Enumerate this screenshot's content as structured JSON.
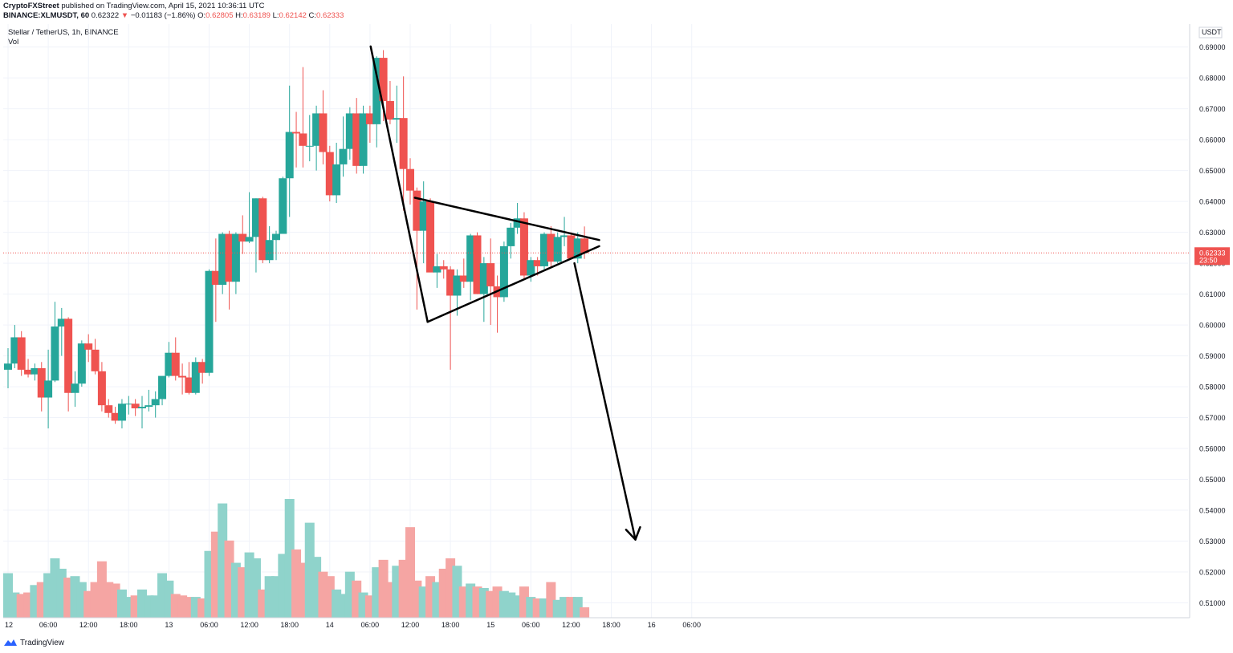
{
  "header": {
    "author": "CryptoFXStreet",
    "published": "published on TradingView.com, April 15, 2021 10:36:11 UTC",
    "symbol": "BINANCE:XLMUSDT, 60",
    "price": "0.62322",
    "change_arrow": "▼",
    "change": "−0.01183 (−1.86%)",
    "o_label": "O:",
    "o": "0.62805",
    "h_label": "H:",
    "h": "0.63189",
    "l_label": "L:",
    "l": "0.62142",
    "c_label": "C:",
    "c": "0.62333"
  },
  "legend": {
    "title": "Stellar / TetherUS, 1h, BINANCE",
    "vol": "Vol"
  },
  "footer": {
    "brand": "TradingView"
  },
  "colors": {
    "up": "#26a69a",
    "down": "#ef5350",
    "vol_up": "#8fd3cb",
    "vol_down": "#f5a5a3",
    "grid": "#f0f3fa"
  },
  "chart_data": {
    "type": "candlestick",
    "currency": "USDT",
    "last_price": "0.62333",
    "countdown": "23:50",
    "ylim": [
      0.5065,
      0.6925
    ],
    "y_ticks": [
      "0.51000",
      "0.52000",
      "0.53000",
      "0.54000",
      "0.55000",
      "0.56000",
      "0.57000",
      "0.58000",
      "0.59000",
      "0.60000",
      "0.61000",
      "0.62000",
      "0.63000",
      "0.64000",
      "0.65000",
      "0.66000",
      "0.67000",
      "0.68000",
      "0.69000"
    ],
    "x_ticks": [
      {
        "label": "12",
        "i": 0
      },
      {
        "label": "06:00",
        "i": 6
      },
      {
        "label": "12:00",
        "i": 12
      },
      {
        "label": "18:00",
        "i": 18
      },
      {
        "label": "13",
        "i": 24
      },
      {
        "label": "06:00",
        "i": 30
      },
      {
        "label": "12:00",
        "i": 36
      },
      {
        "label": "18:00",
        "i": 42
      },
      {
        "label": "14",
        "i": 48
      },
      {
        "label": "06:00",
        "i": 54
      },
      {
        "label": "12:00",
        "i": 60
      },
      {
        "label": "18:00",
        "i": 66
      },
      {
        "label": "15",
        "i": 72
      },
      {
        "label": "06:00",
        "i": 78
      },
      {
        "label": "12:00",
        "i": 84
      },
      {
        "label": "18:00",
        "i": 90
      },
      {
        "label": "16",
        "i": 96
      },
      {
        "label": "06:00",
        "i": 102
      }
    ],
    "vol_scale_max": 100,
    "candles": [
      {
        "o": 0.5855,
        "h": 0.5925,
        "l": 0.5795,
        "c": 0.5875,
        "v": 30
      },
      {
        "o": 0.5875,
        "h": 0.6,
        "l": 0.586,
        "c": 0.596,
        "v": 17
      },
      {
        "o": 0.596,
        "h": 0.598,
        "l": 0.5835,
        "c": 0.5855,
        "v": 16
      },
      {
        "o": 0.5855,
        "h": 0.589,
        "l": 0.583,
        "c": 0.584,
        "v": 17
      },
      {
        "o": 0.584,
        "h": 0.5875,
        "l": 0.582,
        "c": 0.586,
        "v": 22
      },
      {
        "o": 0.586,
        "h": 0.588,
        "l": 0.572,
        "c": 0.5765,
        "v": 24
      },
      {
        "o": 0.5765,
        "h": 0.592,
        "l": 0.5665,
        "c": 0.582,
        "v": 30
      },
      {
        "o": 0.582,
        "h": 0.6075,
        "l": 0.5815,
        "c": 0.5995,
        "v": 40
      },
      {
        "o": 0.5995,
        "h": 0.6055,
        "l": 0.59,
        "c": 0.602,
        "v": 33
      },
      {
        "o": 0.602,
        "h": 0.6025,
        "l": 0.572,
        "c": 0.578,
        "v": 27
      },
      {
        "o": 0.578,
        "h": 0.585,
        "l": 0.5735,
        "c": 0.581,
        "v": 28
      },
      {
        "o": 0.581,
        "h": 0.595,
        "l": 0.58,
        "c": 0.594,
        "v": 24
      },
      {
        "o": 0.594,
        "h": 0.597,
        "l": 0.588,
        "c": 0.592,
        "v": 18
      },
      {
        "o": 0.592,
        "h": 0.5955,
        "l": 0.584,
        "c": 0.585,
        "v": 24
      },
      {
        "o": 0.585,
        "h": 0.588,
        "l": 0.572,
        "c": 0.574,
        "v": 38
      },
      {
        "o": 0.574,
        "h": 0.576,
        "l": 0.57,
        "c": 0.5715,
        "v": 24
      },
      {
        "o": 0.5715,
        "h": 0.5735,
        "l": 0.568,
        "c": 0.569,
        "v": 23
      },
      {
        "o": 0.569,
        "h": 0.576,
        "l": 0.5665,
        "c": 0.5745,
        "v": 19
      },
      {
        "o": 0.5745,
        "h": 0.577,
        "l": 0.571,
        "c": 0.5745,
        "v": 14
      },
      {
        "o": 0.5745,
        "h": 0.576,
        "l": 0.5705,
        "c": 0.573,
        "v": 15
      },
      {
        "o": 0.573,
        "h": 0.577,
        "l": 0.5665,
        "c": 0.5735,
        "v": 19
      },
      {
        "o": 0.5735,
        "h": 0.579,
        "l": 0.572,
        "c": 0.574,
        "v": 15
      },
      {
        "o": 0.574,
        "h": 0.5785,
        "l": 0.57,
        "c": 0.576,
        "v": 15
      },
      {
        "o": 0.576,
        "h": 0.5825,
        "l": 0.574,
        "c": 0.5835,
        "v": 30
      },
      {
        "o": 0.5835,
        "h": 0.5945,
        "l": 0.583,
        "c": 0.591,
        "v": 25
      },
      {
        "o": 0.591,
        "h": 0.596,
        "l": 0.582,
        "c": 0.5835,
        "v": 16
      },
      {
        "o": 0.5835,
        "h": 0.5875,
        "l": 0.5775,
        "c": 0.583,
        "v": 15
      },
      {
        "o": 0.583,
        "h": 0.588,
        "l": 0.5775,
        "c": 0.578,
        "v": 14
      },
      {
        "o": 0.578,
        "h": 0.5895,
        "l": 0.5775,
        "c": 0.588,
        "v": 14
      },
      {
        "o": 0.588,
        "h": 0.589,
        "l": 0.581,
        "c": 0.5845,
        "v": 13
      },
      {
        "o": 0.5845,
        "h": 0.618,
        "l": 0.5835,
        "c": 0.6175,
        "v": 45
      },
      {
        "o": 0.6175,
        "h": 0.628,
        "l": 0.601,
        "c": 0.613,
        "v": 58
      },
      {
        "o": 0.613,
        "h": 0.63,
        "l": 0.61,
        "c": 0.6295,
        "v": 77
      },
      {
        "o": 0.6295,
        "h": 0.6305,
        "l": 0.605,
        "c": 0.614,
        "v": 52
      },
      {
        "o": 0.614,
        "h": 0.63,
        "l": 0.61,
        "c": 0.6295,
        "v": 37
      },
      {
        "o": 0.6295,
        "h": 0.6355,
        "l": 0.623,
        "c": 0.627,
        "v": 34
      },
      {
        "o": 0.627,
        "h": 0.643,
        "l": 0.6265,
        "c": 0.6285,
        "v": 44
      },
      {
        "o": 0.6285,
        "h": 0.641,
        "l": 0.617,
        "c": 0.641,
        "v": 40
      },
      {
        "o": 0.641,
        "h": 0.6415,
        "l": 0.62,
        "c": 0.621,
        "v": 19
      },
      {
        "o": 0.621,
        "h": 0.632,
        "l": 0.62,
        "c": 0.6275,
        "v": 28
      },
      {
        "o": 0.6275,
        "h": 0.6305,
        "l": 0.621,
        "c": 0.6295,
        "v": 28
      },
      {
        "o": 0.6295,
        "h": 0.648,
        "l": 0.6295,
        "c": 0.6475,
        "v": 43
      },
      {
        "o": 0.6475,
        "h": 0.6775,
        "l": 0.635,
        "c": 0.6625,
        "v": 80
      },
      {
        "o": 0.6625,
        "h": 0.669,
        "l": 0.651,
        "c": 0.662,
        "v": 46
      },
      {
        "o": 0.662,
        "h": 0.6835,
        "l": 0.651,
        "c": 0.658,
        "v": 37
      },
      {
        "o": 0.658,
        "h": 0.668,
        "l": 0.653,
        "c": 0.658,
        "v": 64
      },
      {
        "o": 0.658,
        "h": 0.671,
        "l": 0.65,
        "c": 0.6685,
        "v": 41
      },
      {
        "o": 0.6685,
        "h": 0.676,
        "l": 0.652,
        "c": 0.656,
        "v": 31
      },
      {
        "o": 0.656,
        "h": 0.658,
        "l": 0.64,
        "c": 0.642,
        "v": 28
      },
      {
        "o": 0.642,
        "h": 0.659,
        "l": 0.6395,
        "c": 0.652,
        "v": 19
      },
      {
        "o": 0.652,
        "h": 0.6675,
        "l": 0.648,
        "c": 0.657,
        "v": 16
      },
      {
        "o": 0.657,
        "h": 0.6705,
        "l": 0.6535,
        "c": 0.6685,
        "v": 31
      },
      {
        "o": 0.6685,
        "h": 0.6735,
        "l": 0.649,
        "c": 0.6515,
        "v": 25
      },
      {
        "o": 0.6515,
        "h": 0.671,
        "l": 0.649,
        "c": 0.6685,
        "v": 17
      },
      {
        "o": 0.6685,
        "h": 0.671,
        "l": 0.659,
        "c": 0.665,
        "v": 15
      },
      {
        "o": 0.665,
        "h": 0.687,
        "l": 0.6575,
        "c": 0.6865,
        "v": 34
      },
      {
        "o": 0.6865,
        "h": 0.689,
        "l": 0.666,
        "c": 0.6725,
        "v": 39
      },
      {
        "o": 0.6725,
        "h": 0.679,
        "l": 0.665,
        "c": 0.6665,
        "v": 24
      },
      {
        "o": 0.6665,
        "h": 0.6775,
        "l": 0.659,
        "c": 0.667,
        "v": 35
      },
      {
        "o": 0.667,
        "h": 0.6805,
        "l": 0.637,
        "c": 0.6505,
        "v": 39
      },
      {
        "o": 0.6505,
        "h": 0.654,
        "l": 0.639,
        "c": 0.6435,
        "v": 61
      },
      {
        "o": 0.6435,
        "h": 0.6445,
        "l": 0.605,
        "c": 0.6305,
        "v": 25
      },
      {
        "o": 0.6305,
        "h": 0.6465,
        "l": 0.62,
        "c": 0.64,
        "v": 21
      },
      {
        "o": 0.64,
        "h": 0.641,
        "l": 0.6175,
        "c": 0.617,
        "v": 28
      },
      {
        "o": 0.617,
        "h": 0.623,
        "l": 0.612,
        "c": 0.619,
        "v": 24
      },
      {
        "o": 0.619,
        "h": 0.621,
        "l": 0.615,
        "c": 0.618,
        "v": 33
      },
      {
        "o": 0.618,
        "h": 0.619,
        "l": 0.5855,
        "c": 0.6095,
        "v": 40
      },
      {
        "o": 0.6095,
        "h": 0.618,
        "l": 0.603,
        "c": 0.616,
        "v": 35
      },
      {
        "o": 0.616,
        "h": 0.6215,
        "l": 0.612,
        "c": 0.614,
        "v": 21
      },
      {
        "o": 0.614,
        "h": 0.6295,
        "l": 0.608,
        "c": 0.629,
        "v": 23
      },
      {
        "o": 0.629,
        "h": 0.63,
        "l": 0.61,
        "c": 0.61,
        "v": 21
      },
      {
        "o": 0.61,
        "h": 0.622,
        "l": 0.601,
        "c": 0.62,
        "v": 20
      },
      {
        "o": 0.62,
        "h": 0.628,
        "l": 0.6,
        "c": 0.6125,
        "v": 18
      },
      {
        "o": 0.6125,
        "h": 0.616,
        "l": 0.5975,
        "c": 0.609,
        "v": 21
      },
      {
        "o": 0.609,
        "h": 0.627,
        "l": 0.6075,
        "c": 0.6255,
        "v": 18
      },
      {
        "o": 0.6255,
        "h": 0.633,
        "l": 0.6215,
        "c": 0.6315,
        "v": 17
      },
      {
        "o": 0.6315,
        "h": 0.6395,
        "l": 0.6295,
        "c": 0.6345,
        "v": 15
      },
      {
        "o": 0.6345,
        "h": 0.6365,
        "l": 0.6145,
        "c": 0.616,
        "v": 21
      },
      {
        "o": 0.616,
        "h": 0.622,
        "l": 0.614,
        "c": 0.621,
        "v": 14
      },
      {
        "o": 0.621,
        "h": 0.622,
        "l": 0.616,
        "c": 0.619,
        "v": 13
      },
      {
        "o": 0.619,
        "h": 0.63,
        "l": 0.618,
        "c": 0.6295,
        "v": 13
      },
      {
        "o": 0.6295,
        "h": 0.632,
        "l": 0.6185,
        "c": 0.6205,
        "v": 24
      },
      {
        "o": 0.6205,
        "h": 0.63,
        "l": 0.62,
        "c": 0.6285,
        "v": 12
      },
      {
        "o": 0.6285,
        "h": 0.635,
        "l": 0.6255,
        "c": 0.629,
        "v": 14
      },
      {
        "o": 0.629,
        "h": 0.63,
        "l": 0.6215,
        "c": 0.6215,
        "v": 14
      },
      {
        "o": 0.6215,
        "h": 0.63,
        "l": 0.62,
        "c": 0.628,
        "v": 14
      },
      {
        "o": 0.628,
        "h": 0.6319,
        "l": 0.6214,
        "c": 0.6233,
        "v": 7
      }
    ],
    "pattern_lines": [
      {
        "from": {
          "i": 54.1,
          "p": 0.6902
        },
        "to": {
          "i": 62.6,
          "p": 0.601
        }
      },
      {
        "from": {
          "i": 62.6,
          "p": 0.601
        },
        "to": {
          "i": 88.2,
          "p": 0.6255
        }
      },
      {
        "from": {
          "i": 60.7,
          "p": 0.6412
        },
        "to": {
          "i": 88.2,
          "p": 0.6275
        }
      },
      {
        "from": {
          "i": 84.5,
          "p": 0.62
        },
        "to": {
          "i": 93.6,
          "p": 0.5305
        }
      }
    ],
    "arrow_head": [
      {
        "i": 92.2,
        "p": 0.5337
      },
      {
        "i": 93.6,
        "p": 0.5305
      },
      {
        "i": 94.3,
        "p": 0.5345
      }
    ]
  }
}
